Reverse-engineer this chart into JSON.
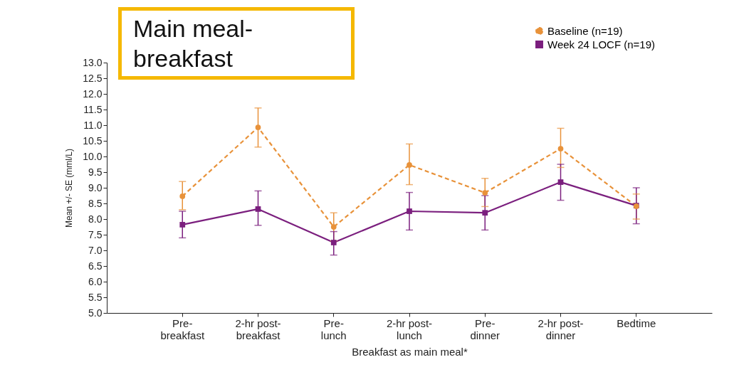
{
  "chart_data": {
    "type": "line",
    "xlabel": "Breakfast as main meal*",
    "ylabel": "Mean +/- SE (mml/L)",
    "annotations": [
      "Main meal-breakfast"
    ],
    "categories": [
      "Pre-breakfast",
      "2-hr post-breakfast",
      "Pre-lunch",
      "2-hr post-lunch",
      "Pre-dinner",
      "2-hr post-dinner",
      "Bedtime"
    ],
    "series": [
      {
        "name": "Baseline (n=19)",
        "color": "#e8923a",
        "line_style": "dashed",
        "marker": "circle",
        "values": [
          8.73,
          10.93,
          7.75,
          9.73,
          8.84,
          10.25,
          8.41
        ],
        "errors": [
          [
            8.3,
            9.2
          ],
          [
            10.3,
            11.55
          ],
          [
            7.3,
            8.2
          ],
          [
            9.1,
            10.4
          ],
          [
            8.4,
            9.3
          ],
          [
            9.65,
            10.9
          ],
          [
            8.0,
            8.8
          ]
        ]
      },
      {
        "name": "Week 24 LOCF (n=19)",
        "color": "#7b1f7e",
        "line_style": "solid",
        "marker": "square",
        "values": [
          7.82,
          8.32,
          7.25,
          8.25,
          8.2,
          9.18,
          8.43
        ],
        "errors": [
          [
            7.4,
            8.25
          ],
          [
            7.8,
            8.9
          ],
          [
            6.85,
            7.6
          ],
          [
            7.65,
            8.85
          ],
          [
            7.65,
            8.75
          ],
          [
            8.6,
            9.75
          ],
          [
            7.85,
            9.0
          ]
        ]
      }
    ],
    "ylim": [
      5,
      13
    ],
    "yticks": [
      {
        "value": 5,
        "label": "5.0"
      },
      {
        "value": 5.5,
        "label": "5.5"
      },
      {
        "value": 6,
        "label": "6.0"
      },
      {
        "value": 6.5,
        "label": "6.5"
      },
      {
        "value": 7,
        "label": "7.0"
      },
      {
        "value": 7.5,
        "label": "7.5"
      },
      {
        "value": 8,
        "label": "8.0"
      },
      {
        "value": 8.5,
        "label": "8.5"
      },
      {
        "value": 9,
        "label": "9.0"
      },
      {
        "value": 9.5,
        "label": "9.5"
      },
      {
        "value": 10,
        "label": "10.0"
      },
      {
        "value": 10.5,
        "label": "10.5"
      },
      {
        "value": 11,
        "label": "11.0"
      },
      {
        "value": 11.5,
        "label": "11.5"
      },
      {
        "value": 12,
        "label": "12.0"
      },
      {
        "value": 12.5,
        "label": "12.5"
      },
      {
        "value": 13,
        "label": "13.0"
      }
    ],
    "grid": false,
    "legend": "top right"
  }
}
